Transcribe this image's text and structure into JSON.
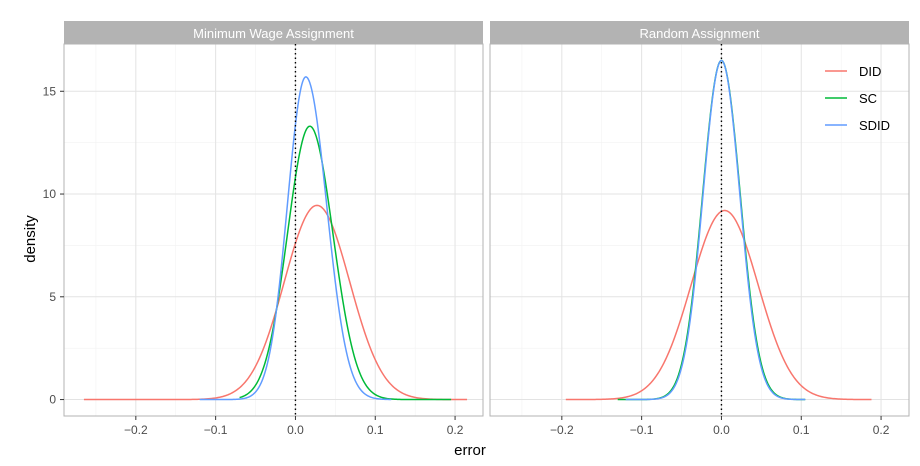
{
  "chart_data": {
    "type": "line",
    "xlabel": "error",
    "ylabel": "density",
    "xlim": [
      -0.29,
      0.235
    ],
    "ylim": [
      -0.8,
      17.3
    ],
    "x_ticks": [
      -0.2,
      -0.1,
      0.0,
      0.1,
      0.2
    ],
    "x_tick_labels": [
      "−0.2",
      "−0.1",
      "0.0",
      "0.1",
      "0.2"
    ],
    "y_ticks": [
      0,
      5,
      10,
      15
    ],
    "y_tick_labels": [
      "0",
      "5",
      "10",
      "15"
    ],
    "reference_line": {
      "x": 0,
      "style": "dotted"
    },
    "grid": true,
    "legend_position": "top-right",
    "colors": {
      "DID": "#F8766D",
      "SC": "#00BA38",
      "SDID": "#619CFF"
    },
    "series": [
      {
        "name": "DID"
      },
      {
        "name": "SC"
      },
      {
        "name": "SDID"
      }
    ],
    "panels": [
      {
        "title": "Minimum Wage Assignment",
        "curves": [
          {
            "series": "DID",
            "mode": 0.027,
            "peak": 9.45,
            "sd_left": 0.041,
            "sd_right": 0.041,
            "x_range": [
              -0.265,
              0.215
            ]
          },
          {
            "series": "SC",
            "mode": 0.018,
            "peak": 13.3,
            "sd_left": 0.028,
            "sd_right": 0.029,
            "x_range": [
              -0.07,
              0.195
            ]
          },
          {
            "series": "SDID",
            "mode": 0.013,
            "peak": 15.7,
            "sd_left": 0.023,
            "sd_right": 0.026,
            "x_range": [
              -0.12,
              0.12
            ]
          }
        ]
      },
      {
        "title": "Random Assignment",
        "curves": [
          {
            "series": "DID",
            "mode": 0.004,
            "peak": 9.2,
            "sd_left": 0.042,
            "sd_right": 0.042,
            "x_range": [
              -0.195,
              0.188
            ]
          },
          {
            "series": "SC",
            "mode": 0.0,
            "peak": 16.5,
            "sd_left": 0.0235,
            "sd_right": 0.0235,
            "x_range": [
              -0.13,
              0.105
            ]
          },
          {
            "series": "SDID",
            "mode": 0.0,
            "peak": 16.5,
            "sd_left": 0.023,
            "sd_right": 0.023,
            "x_range": [
              -0.12,
              0.105
            ]
          }
        ]
      }
    ]
  }
}
